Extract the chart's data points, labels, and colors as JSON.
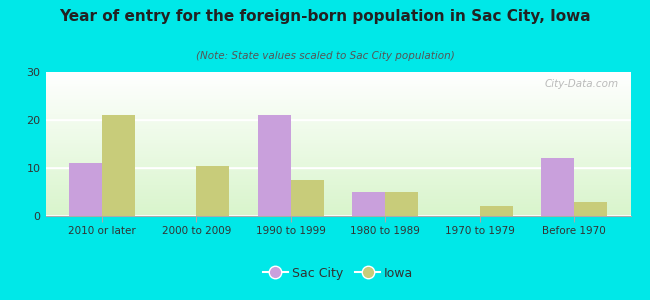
{
  "title": "Year of entry for the foreign-born population in Sac City, Iowa",
  "subtitle": "(Note: State values scaled to Sac City population)",
  "categories": [
    "2010 or later",
    "2000 to 2009",
    "1990 to 1999",
    "1980 to 1989",
    "1970 to 1979",
    "Before 1970"
  ],
  "sac_city_values": [
    11,
    0,
    21,
    5,
    0,
    12
  ],
  "iowa_values": [
    21,
    10.5,
    7.5,
    5,
    2,
    3
  ],
  "sac_city_color": "#c9a0dc",
  "iowa_color": "#c8cc7a",
  "background_color": "#00e8e8",
  "plot_bg_color": "#ffffff",
  "ylim": [
    0,
    30
  ],
  "yticks": [
    0,
    10,
    20,
    30
  ],
  "bar_width": 0.35,
  "legend_sac_city": "Sac City",
  "legend_iowa": "Iowa",
  "watermark": "City-Data.com"
}
